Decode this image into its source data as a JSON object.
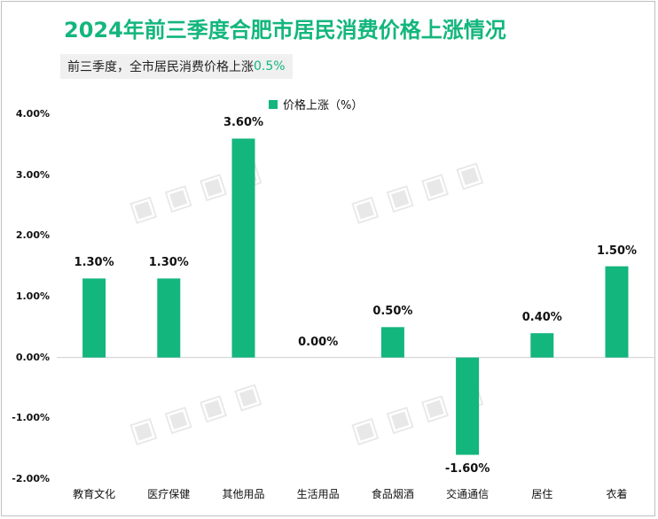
{
  "title": "2024年前三季度合肥市居民消费价格上涨情况",
  "subtitle": {
    "text": "前三季度，全市居民消费价格上涨",
    "value": "0.5%"
  },
  "colors": {
    "accent": "#13b67d",
    "bar": "#13b67d"
  },
  "chart_data": {
    "type": "bar",
    "categories": [
      "教育文化",
      "医疗保健",
      "其他用品",
      "生活用品",
      "食品烟酒",
      "交通通信",
      "居住",
      "衣着"
    ],
    "series": [
      {
        "name": "价格上涨（%）",
        "values": [
          1.3,
          1.3,
          3.6,
          0.0,
          0.5,
          -1.6,
          0.4,
          1.5
        ]
      }
    ],
    "data_labels": [
      "1.30%",
      "1.30%",
      "3.60%",
      "0.00%",
      "0.50%",
      "-1.60%",
      "0.40%",
      "1.50%"
    ],
    "yticks": [
      "-2.00%",
      "-1.00%",
      "0.00%",
      "1.00%",
      "2.00%",
      "3.00%",
      "4.00%"
    ],
    "ylim": [
      -2,
      4
    ],
    "legend_position": "top",
    "grid": false
  }
}
